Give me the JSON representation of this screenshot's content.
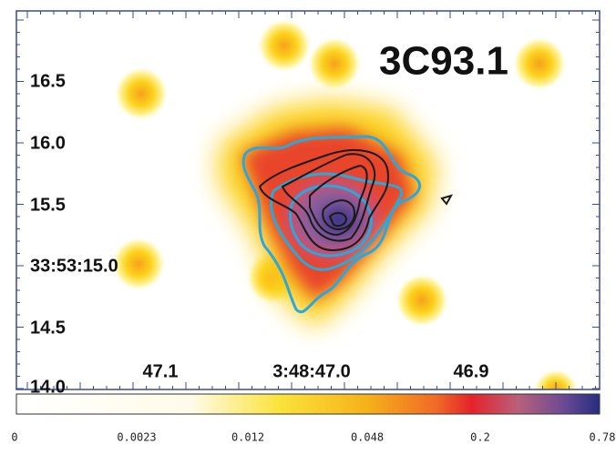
{
  "title": "3C93.1",
  "y_axis": {
    "labels": [
      "16.5",
      "16.0",
      "15.5",
      "33:53:15.0",
      "14.5",
      "14.0"
    ]
  },
  "x_axis": {
    "labels": [
      "47.1",
      "3:48:47.0",
      "46.9"
    ]
  },
  "colorbar": {
    "labels": [
      "0",
      "0.0023",
      "0.012",
      "0.048",
      "0.2",
      "0.78"
    ]
  }
}
